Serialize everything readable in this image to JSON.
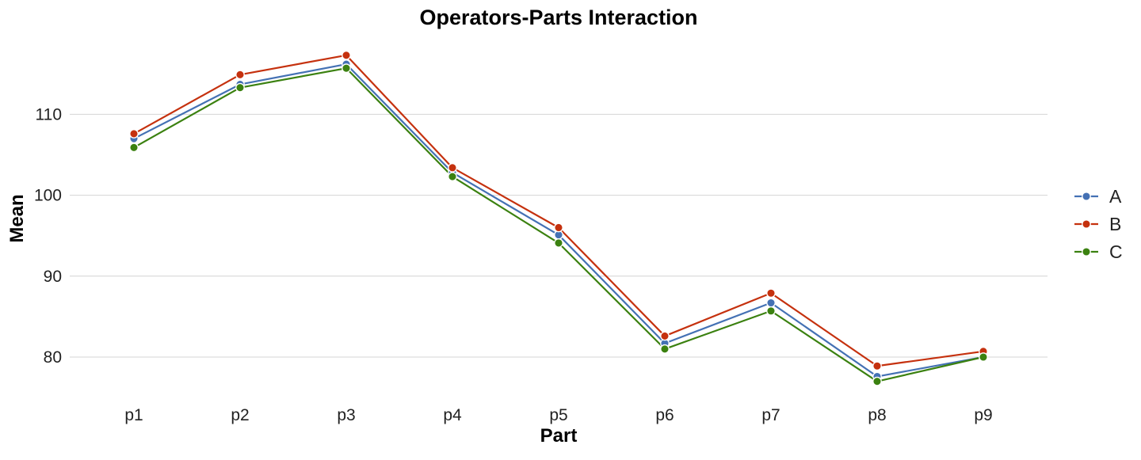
{
  "chart_data": {
    "type": "line",
    "title": "Operators-Parts Interaction",
    "xlabel": "Part",
    "ylabel": "Mean",
    "categories": [
      "p1",
      "p2",
      "p3",
      "p4",
      "p5",
      "p6",
      "p7",
      "p8",
      "p9"
    ],
    "ylim": [
      75,
      118
    ],
    "yticks": [
      80,
      90,
      100,
      110
    ],
    "grid": "horizontal",
    "legend_position": "right",
    "series": [
      {
        "name": "A",
        "color": "#4471b4",
        "values": [
          107.0,
          113.7,
          116.2,
          102.8,
          95.1,
          81.7,
          86.7,
          77.6,
          80.0
        ]
      },
      {
        "name": "B",
        "color": "#c5310e",
        "values": [
          107.6,
          114.9,
          117.3,
          103.4,
          96.0,
          82.6,
          87.9,
          78.9,
          80.7
        ]
      },
      {
        "name": "C",
        "color": "#3b8110",
        "values": [
          105.9,
          113.3,
          115.7,
          102.3,
          94.1,
          81.0,
          85.7,
          77.0,
          80.0
        ]
      }
    ]
  }
}
